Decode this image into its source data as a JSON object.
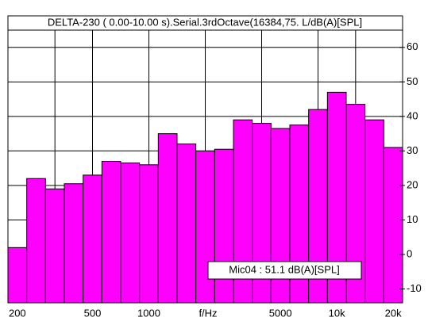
{
  "chart_data": {
    "type": "bar",
    "title": "DELTA-230 ( 0.00-10.00 s).Serial.3rdOctave(16384,75. L/dB(A)[SPL]",
    "xlabel": "f/Hz",
    "annotation": "Mic04 : 51.1 dB(A)[SPL]",
    "categories": [
      "200",
      null,
      null,
      null,
      "500",
      null,
      null,
      "1000",
      null,
      null,
      null,
      null,
      null,
      null,
      "5000",
      null,
      null,
      "10k",
      null,
      null,
      "20k"
    ],
    "values": [
      2,
      22,
      19,
      20.5,
      23,
      27,
      26.5,
      26,
      35,
      32,
      30,
      30.5,
      39,
      38,
      36.5,
      37.5,
      42,
      47,
      43.5,
      39,
      31
    ],
    "color": "#ff00ff",
    "ylim": [
      -14,
      65
    ],
    "yticks": [
      -10,
      0,
      10,
      20,
      30,
      40,
      50,
      60
    ],
    "grid": true
  }
}
